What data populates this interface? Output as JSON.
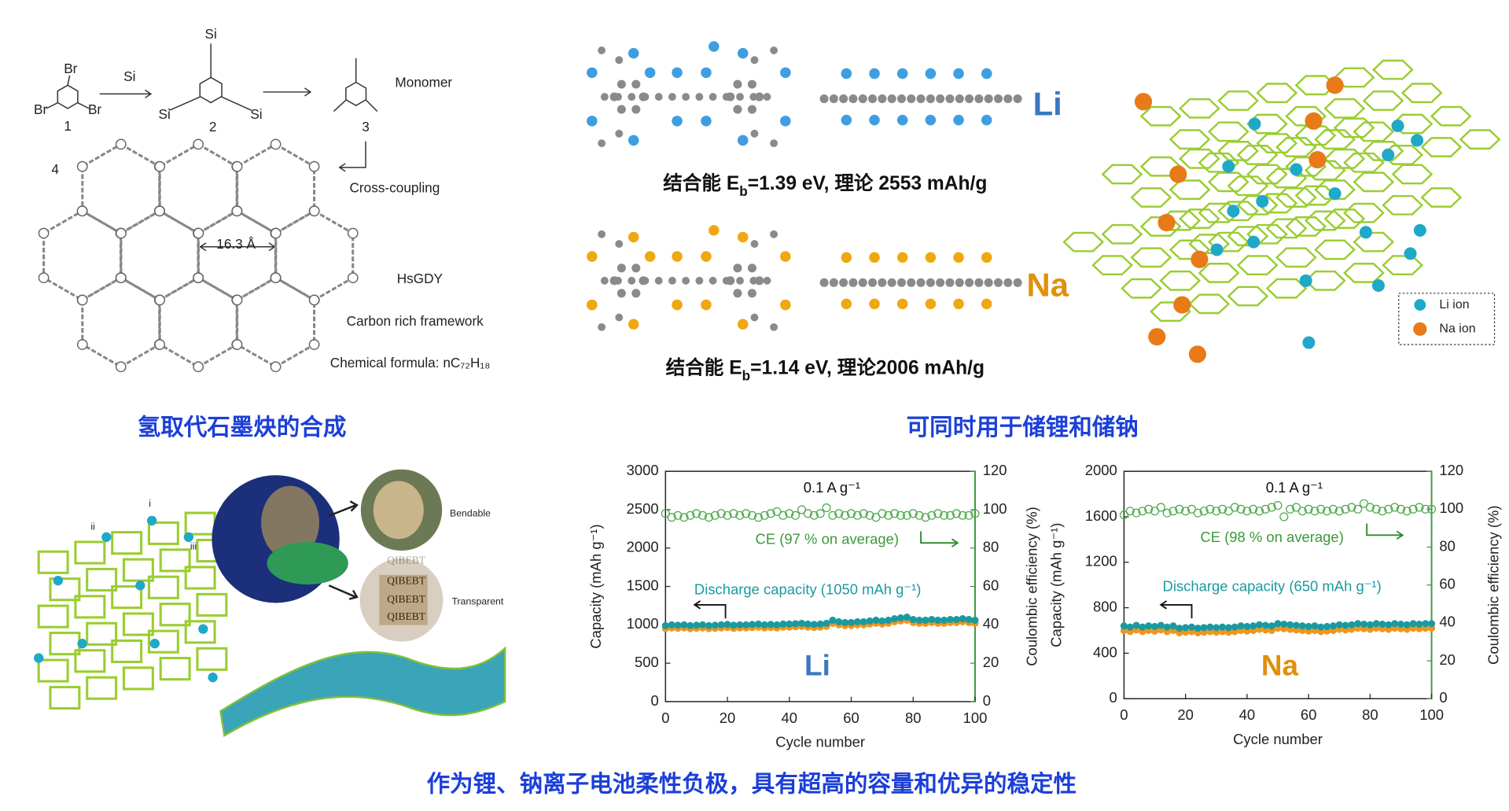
{
  "synthesis": {
    "labels": [
      "Br",
      "Br",
      "Br",
      "1",
      "Si",
      "Si",
      "Si",
      "Si",
      "2",
      "3",
      "Monomer",
      "4",
      "Cross-coupling",
      "16.3 Å",
      "HsGDY",
      "Carbon rich framework",
      "Chemical formula: nC₇₂H₁₈"
    ],
    "caption": "氢取代石墨炔的合成"
  },
  "storage": {
    "binding": [
      {
        "parts": [
          "结合能 E",
          "b",
          "=1.39 eV, 理论 2553 mAh/g"
        ]
      },
      {
        "parts": [
          "结合能 E",
          "b",
          "=1.14 eV, 理论2006 mAh/g"
        ]
      }
    ],
    "elements": [
      "Li",
      "Na"
    ],
    "legend": [
      "Li ion",
      "Na ion"
    ],
    "caption": "可同时用于储锂和储钠"
  },
  "device": {
    "labels": [
      "i",
      "ii",
      "iii",
      "Bendable",
      "Transparent",
      "QIBEBT",
      "QIBEBT",
      "QIBEBT",
      "QIBEBT"
    ]
  },
  "caption": "作为锂、钠离子电池柔性负极，具有超高的容量和优异的稳定性",
  "chart_data": [
    {
      "type": "scatter",
      "xlabel": "Cycle number",
      "ylabel": "Capacity (mAh g⁻¹)",
      "y2label": "Coulombic efficiency (%)",
      "annotations": [
        "0.1 A g⁻¹",
        "CE (97 % on average)",
        "Discharge capacity (1050 mAh g⁻¹)",
        "Li"
      ],
      "x": [
        0,
        2,
        4,
        6,
        8,
        10,
        12,
        14,
        16,
        18,
        20,
        22,
        24,
        26,
        28,
        30,
        32,
        34,
        36,
        38,
        40,
        42,
        44,
        46,
        48,
        50,
        52,
        54,
        56,
        58,
        60,
        62,
        64,
        66,
        68,
        70,
        72,
        74,
        76,
        78,
        80,
        82,
        84,
        86,
        88,
        90,
        92,
        94,
        96,
        98,
        100
      ],
      "xlim": [
        0,
        100
      ],
      "xticks": [
        0,
        20,
        40,
        60,
        80,
        100
      ],
      "ylim": [
        0,
        3000
      ],
      "yticks": [
        0,
        500,
        1000,
        1500,
        2000,
        2500,
        3000
      ],
      "y2lim": [
        0,
        120
      ],
      "y2ticks": [
        0,
        20,
        40,
        60,
        80,
        100,
        120
      ],
      "series": [
        {
          "color": "#f0961e",
          "filled": true,
          "values": [
            950,
            960,
            955,
            960,
            950,
            955,
            960,
            950,
            955,
            960,
            965,
            955,
            960,
            960,
            965,
            970,
            960,
            965,
            960,
            970,
            970,
            975,
            980,
            970,
            965,
            970,
            980,
            1020,
            1000,
            990,
            990,
            1000,
            1000,
            1010,
            1020,
            1010,
            1020,
            1040,
            1050,
            1060,
            1030,
            1020,
            1020,
            1030,
            1020,
            1020,
            1030,
            1030,
            1040,
            1030,
            1020
          ]
        },
        {
          "color": "#1a9aa0",
          "filled": true,
          "values": [
            990,
            1000,
            995,
            1000,
            990,
            995,
            1000,
            990,
            995,
            1000,
            1005,
            995,
            1000,
            1000,
            1005,
            1010,
            1000,
            1005,
            1000,
            1010,
            1010,
            1015,
            1020,
            1010,
            1005,
            1010,
            1020,
            1060,
            1040,
            1030,
            1030,
            1040,
            1040,
            1050,
            1060,
            1050,
            1060,
            1080,
            1090,
            1100,
            1070,
            1060,
            1060,
            1070,
            1060,
            1060,
            1070,
            1070,
            1080,
            1070,
            1060
          ]
        },
        {
          "color": "#4aa84a",
          "filled": false,
          "axis": "y2",
          "values": [
            98,
            96,
            97,
            96,
            97,
            98,
            97,
            96,
            97,
            98,
            97,
            98,
            97,
            98,
            97,
            96,
            97,
            98,
            99,
            97,
            98,
            97,
            100,
            98,
            97,
            98,
            101,
            97,
            98,
            97,
            98,
            97,
            98,
            97,
            96,
            98,
            97,
            98,
            97,
            97,
            98,
            97,
            96,
            97,
            98,
            97,
            97,
            98,
            97,
            97,
            98
          ]
        }
      ]
    },
    {
      "type": "scatter",
      "xlabel": "Cycle number",
      "ylabel": "Capacity (mAh g⁻¹)",
      "y2label": "Coulombic efficiency (%)",
      "annotations": [
        "0.1 A g⁻¹",
        "CE (98 % on average)",
        "Discharge capacity (650 mAh g⁻¹)",
        "Na"
      ],
      "x": [
        0,
        2,
        4,
        6,
        8,
        10,
        12,
        14,
        16,
        18,
        20,
        22,
        24,
        26,
        28,
        30,
        32,
        34,
        36,
        38,
        40,
        42,
        44,
        46,
        48,
        50,
        52,
        54,
        56,
        58,
        60,
        62,
        64,
        66,
        68,
        70,
        72,
        74,
        76,
        78,
        80,
        82,
        84,
        86,
        88,
        90,
        92,
        94,
        96,
        98,
        100
      ],
      "xlim": [
        0,
        100
      ],
      "xticks": [
        0,
        20,
        40,
        60,
        80,
        100
      ],
      "ylim": [
        0,
        2000
      ],
      "yticks": [
        0,
        400,
        800,
        1200,
        1600,
        2000
      ],
      "y2lim": [
        0,
        120
      ],
      "y2ticks": [
        0,
        20,
        40,
        60,
        80,
        100,
        120
      ],
      "series": [
        {
          "color": "#f0961e",
          "filled": true,
          "values": [
            600,
            590,
            605,
            590,
            600,
            595,
            605,
            590,
            600,
            580,
            585,
            590,
            580,
            585,
            590,
            585,
            590,
            585,
            590,
            600,
            595,
            600,
            610,
            605,
            600,
            620,
            615,
            610,
            605,
            600,
            595,
            600,
            590,
            595,
            600,
            610,
            605,
            610,
            620,
            615,
            610,
            620,
            615,
            610,
            620,
            615,
            610,
            620,
            615,
            620,
            620
          ]
        },
        {
          "color": "#1a9aa0",
          "filled": true,
          "values": [
            640,
            630,
            645,
            630,
            640,
            635,
            645,
            630,
            640,
            620,
            625,
            630,
            620,
            625,
            630,
            625,
            630,
            625,
            630,
            640,
            635,
            640,
            650,
            645,
            640,
            660,
            655,
            650,
            645,
            640,
            635,
            640,
            630,
            635,
            640,
            650,
            645,
            650,
            660,
            655,
            650,
            660,
            655,
            650,
            660,
            655,
            650,
            660,
            655,
            660,
            660
          ]
        },
        {
          "color": "#4aa84a",
          "filled": false,
          "axis": "y2",
          "values": [
            97,
            99,
            98,
            99,
            100,
            99,
            101,
            98,
            99,
            100,
            99,
            100,
            98,
            99,
            100,
            99,
            100,
            99,
            101,
            100,
            99,
            100,
            99,
            100,
            101,
            102,
            96,
            100,
            101,
            99,
            100,
            99,
            100,
            99,
            100,
            99,
            100,
            101,
            100,
            103,
            101,
            100,
            99,
            100,
            101,
            100,
            99,
            100,
            101,
            100,
            100
          ]
        }
      ]
    }
  ]
}
